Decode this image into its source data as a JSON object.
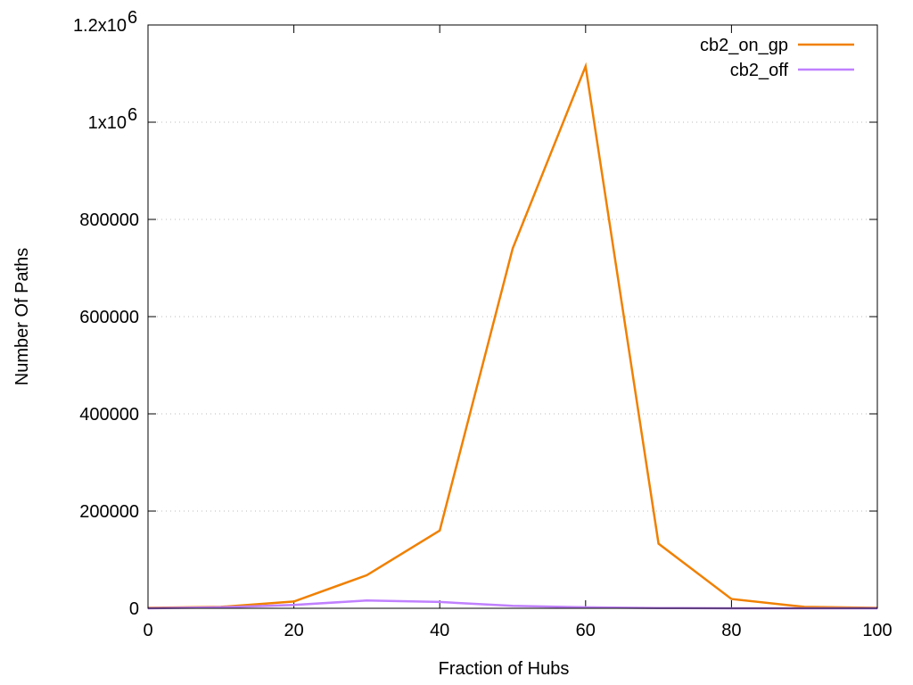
{
  "chart_data": {
    "type": "line",
    "title": "",
    "xlabel": "Fraction of Hubs",
    "ylabel": "Number Of Paths",
    "xlim": [
      0,
      100
    ],
    "ylim": [
      0,
      1200000
    ],
    "xticks": [
      0,
      20,
      40,
      60,
      80,
      100
    ],
    "xtick_labels": [
      "0",
      "20",
      "40",
      "60",
      "80",
      "100"
    ],
    "yticks": [
      0,
      200000,
      400000,
      600000,
      800000,
      1000000,
      1200000
    ],
    "ytick_labels": [
      "0",
      "200000",
      "400000",
      "600000",
      "800000",
      "1x10",
      "1.2x10"
    ],
    "ytick_exponents": [
      "",
      "",
      "",
      "",
      "",
      "6",
      "6"
    ],
    "grid": "horizontal-dotted",
    "legend_position": "top-right",
    "series": [
      {
        "name": "cb2_on_gp",
        "color": "#f08000",
        "x": [
          0,
          10,
          20,
          30,
          40,
          50,
          60,
          70,
          80,
          90,
          100
        ],
        "values": [
          1000,
          3000,
          14000,
          68000,
          160000,
          740000,
          1115000,
          133000,
          19000,
          3000,
          1000
        ]
      },
      {
        "name": "cb2_off",
        "color": "#c080ff",
        "x": [
          0,
          10,
          20,
          30,
          40,
          50,
          60,
          70,
          80,
          90,
          100
        ],
        "values": [
          0,
          2000,
          7000,
          16000,
          13000,
          5000,
          2000,
          500,
          0,
          0,
          0
        ]
      }
    ]
  }
}
